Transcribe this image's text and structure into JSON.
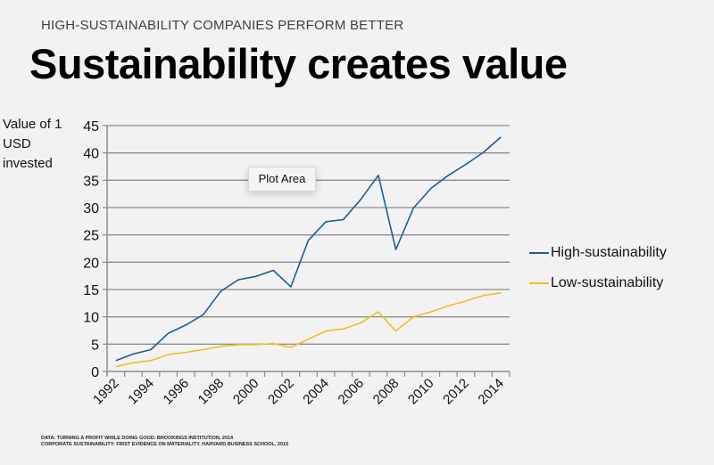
{
  "header": {
    "subtitle": "HIGH-SUSTAINABILITY COMPANIES PERFORM BETTER",
    "title": "Sustainability creates value"
  },
  "tooltip": "Plot Area",
  "sources": [
    "DATA: TURNING A PROFIT WHILE DOING GOOD. BROOKINGS INSTITUTION, 2014",
    "CORPORATE SUSTAINABILITY: FIRST EVIDENCE ON MATERIALITY. HARVARD BUSINESS SCHOOL, 2015"
  ],
  "chart_data": {
    "type": "line",
    "title": "",
    "xlabel": "",
    "ylabel": "Value of 1 USD invested",
    "x": [
      1992,
      1993,
      1994,
      1995,
      1996,
      1997,
      1998,
      1999,
      2000,
      2001,
      2002,
      2003,
      2004,
      2005,
      2006,
      2007,
      2008,
      2009,
      2010,
      2011,
      2012,
      2013,
      2014
    ],
    "x_tick_labels": [
      "1992",
      "1994",
      "1996",
      "1998",
      "2000",
      "2002",
      "2004",
      "2006",
      "2008",
      "2010",
      "2012",
      "2014"
    ],
    "y_ticks": [
      0,
      5,
      10,
      15,
      20,
      25,
      30,
      35,
      40,
      45
    ],
    "ylim": [
      0,
      45
    ],
    "grid": "horizontal",
    "legend_position": "right",
    "series": [
      {
        "name": "High-sustainability",
        "color": "#1f5c99",
        "values": [
          2.0,
          3.2,
          4.0,
          7.0,
          8.5,
          10.4,
          14.7,
          16.8,
          17.4,
          18.5,
          15.5,
          24.0,
          27.4,
          27.8,
          31.5,
          35.9,
          22.3,
          29.9,
          33.5,
          35.9,
          37.9,
          40.1,
          42.9
        ]
      },
      {
        "name": "Low-sustainability",
        "color": "#f5bd1f",
        "values": [
          0.9,
          1.6,
          2.0,
          3.1,
          3.5,
          4.0,
          4.6,
          4.9,
          4.9,
          5.1,
          4.4,
          5.9,
          7.4,
          7.8,
          8.9,
          10.9,
          7.4,
          10.0,
          10.9,
          12.0,
          12.9,
          13.9,
          14.4
        ]
      }
    ]
  }
}
